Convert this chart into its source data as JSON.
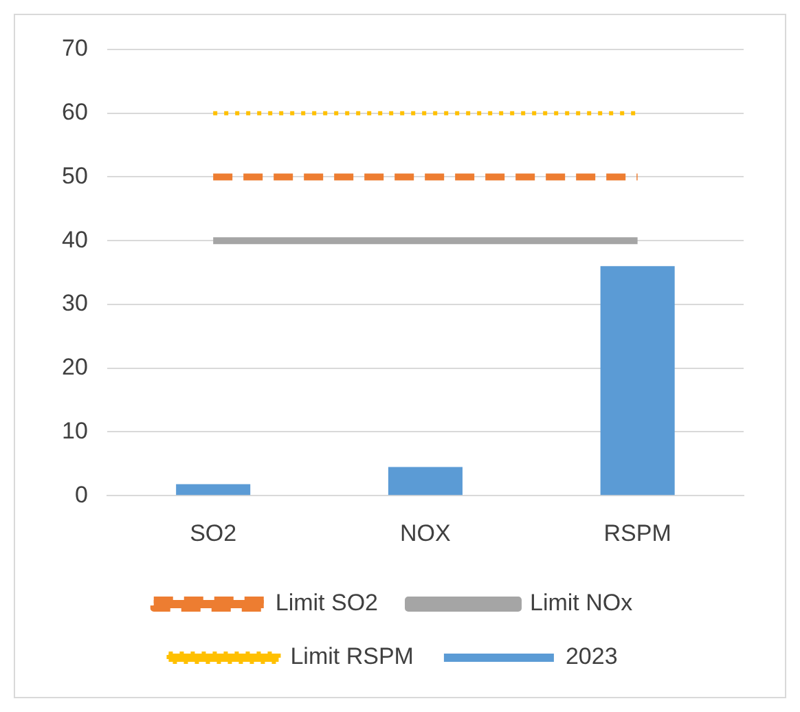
{
  "chart_data": {
    "type": "bar",
    "categories": [
      "SO2",
      "NOX",
      "RSPM"
    ],
    "ylim": [
      0,
      70
    ],
    "yticks": [
      0,
      10,
      20,
      30,
      40,
      50,
      60,
      70
    ],
    "grid": "y",
    "legend": "bottom",
    "marker": "none",
    "series": [
      {
        "name": "2023",
        "color": "#5b9bd5",
        "values": [
          1.8,
          4.5,
          36
        ]
      },
      {
        "name": "Limit SO2",
        "type": "line",
        "line_style": "dashed",
        "color": "#ed7d31",
        "values": [
          50,
          50,
          50
        ]
      },
      {
        "name": "Limit NOx",
        "type": "line",
        "line_style": "solid",
        "color": "#a5a5a5",
        "values": [
          40,
          40,
          40
        ]
      },
      {
        "name": "Limit RSPM",
        "type": "line",
        "line_style": "dotted",
        "color": "#ffc000",
        "values": [
          60,
          60,
          60
        ]
      }
    ]
  }
}
